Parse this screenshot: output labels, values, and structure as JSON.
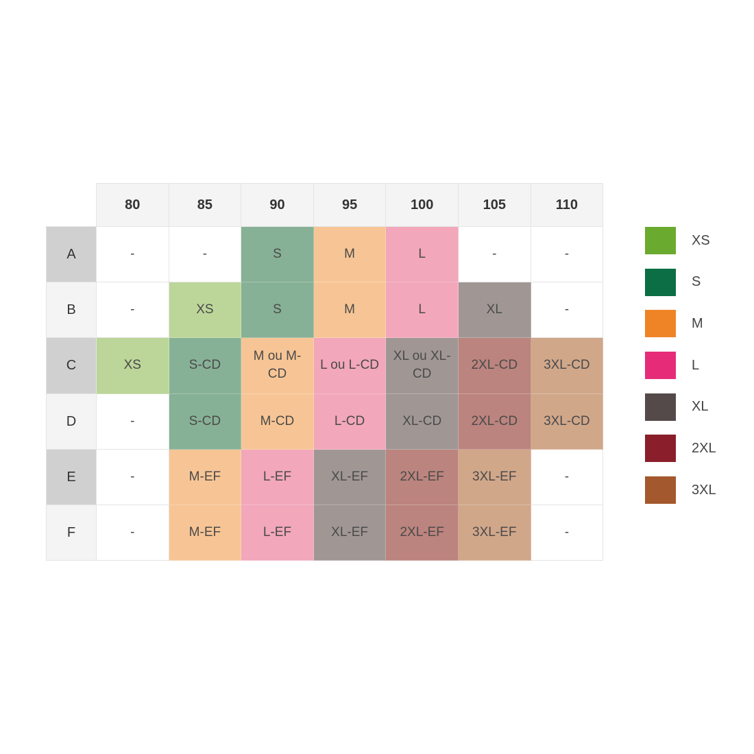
{
  "chart_data": {
    "type": "table",
    "columns": [
      "80",
      "85",
      "90",
      "95",
      "100",
      "105",
      "110"
    ],
    "rows": [
      {
        "label": "A",
        "cells": [
          "-",
          "-",
          "S",
          "M",
          "L",
          "-",
          "-"
        ],
        "sizes": [
          "",
          "",
          "S",
          "M",
          "L",
          "",
          ""
        ]
      },
      {
        "label": "B",
        "cells": [
          "-",
          "XS",
          "S",
          "M",
          "L",
          "XL",
          "-"
        ],
        "sizes": [
          "",
          "XS",
          "S",
          "M",
          "L",
          "XL",
          ""
        ]
      },
      {
        "label": "C",
        "cells": [
          "XS",
          "S-CD",
          "M ou M-CD",
          "L ou L-CD",
          "XL ou XL-CD",
          "2XL-CD",
          "3XL-CD"
        ],
        "sizes": [
          "XS",
          "S",
          "M",
          "L",
          "XL",
          "2XL",
          "3XL"
        ]
      },
      {
        "label": "D",
        "cells": [
          "-",
          "S-CD",
          "M-CD",
          "L-CD",
          "XL-CD",
          "2XL-CD",
          "3XL-CD"
        ],
        "sizes": [
          "",
          "S",
          "M",
          "L",
          "XL",
          "2XL",
          "3XL"
        ]
      },
      {
        "label": "E",
        "cells": [
          "-",
          "M-EF",
          "L-EF",
          "XL-EF",
          "2XL-EF",
          "3XL-EF",
          "-"
        ],
        "sizes": [
          "",
          "M",
          "L",
          "XL",
          "2XL",
          "3XL",
          ""
        ]
      },
      {
        "label": "F",
        "cells": [
          "-",
          "M-EF",
          "L-EF",
          "XL-EF",
          "2XL-EF",
          "3XL-EF",
          "-"
        ],
        "sizes": [
          "",
          "M",
          "L",
          "XL",
          "2XL",
          "3XL",
          ""
        ]
      }
    ],
    "legend": [
      {
        "label": "XS",
        "color": "#6aaa2e",
        "cell_color": "#bcd699"
      },
      {
        "label": "S",
        "color": "#0b6e45",
        "cell_color": "#87b196"
      },
      {
        "label": "M",
        "color": "#ef8426",
        "cell_color": "#f7c595"
      },
      {
        "label": "L",
        "color": "#e62c78",
        "cell_color": "#f2a7bb"
      },
      {
        "label": "XL",
        "color": "#544a4a",
        "cell_color": "#a09795"
      },
      {
        "label": "2XL",
        "color": "#8a1f2b",
        "cell_color": "#bc847e"
      },
      {
        "label": "3XL",
        "color": "#a3582d",
        "cell_color": "#d1a78a"
      }
    ],
    "legend_position": "right",
    "row_header_colors": [
      "#d0d0d0",
      "#f4f4f4"
    ]
  }
}
